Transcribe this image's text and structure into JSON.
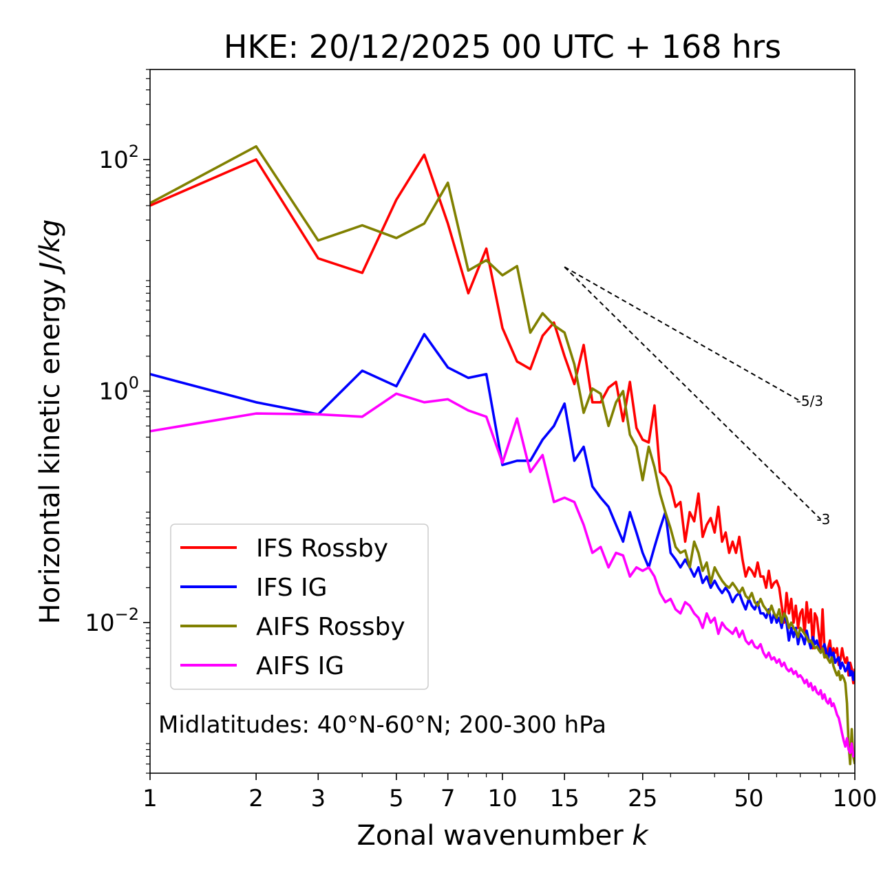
{
  "chart_data": {
    "type": "line",
    "title": "HKE: 20/12/2025 00 UTC + 168 hrs",
    "xlabel": "Zonal wavenumber ",
    "xlabel_italic": "k",
    "ylabel": "Horizontal kinetic energy ",
    "ylabel_italic": "J/kg",
    "xscale": "log",
    "yscale": "log",
    "xlim": [
      1,
      100
    ],
    "ylim": [
      0.0005,
      600
    ],
    "x_ticks": [
      1,
      2,
      3,
      5,
      7,
      10,
      15,
      25,
      50,
      100
    ],
    "x_tick_labels": [
      "1",
      "2",
      "3",
      "5",
      "7",
      "10",
      "15",
      "25",
      "50",
      "100"
    ],
    "y_ticks": [
      {
        "value": 100,
        "base": "10",
        "exp": "2"
      },
      {
        "value": 1,
        "base": "10",
        "exp": "0"
      },
      {
        "value": 0.01,
        "base": "10",
        "exp": "−2"
      }
    ],
    "annotation": "Midlatitudes: 40°N-60°N; 200-300 hPa",
    "legend_position": "lower-left",
    "reference_lines": [
      {
        "label": "-5/3",
        "x": [
          15,
          70
        ],
        "y": [
          11.8,
          0.82
        ]
      },
      {
        "label": "-3",
        "x": [
          15,
          80
        ],
        "y": [
          11.8,
          0.078
        ]
      }
    ],
    "series": [
      {
        "name": "IFS Rossby",
        "color": "#ff0000",
        "x": [
          1,
          2,
          3,
          4,
          5,
          6,
          7,
          8,
          9,
          10,
          11,
          12,
          13,
          14,
          15,
          16,
          17,
          18,
          19,
          20,
          21,
          22,
          23,
          24,
          25,
          26,
          27,
          28,
          29,
          30,
          31,
          32,
          33,
          34,
          35,
          36,
          37,
          38,
          39,
          40,
          41,
          42,
          43,
          44,
          45,
          46,
          47,
          48,
          49,
          50,
          51,
          52,
          53,
          54,
          55,
          56,
          57,
          58,
          59,
          60,
          61,
          62,
          63,
          64,
          65,
          66,
          67,
          68,
          69,
          70,
          71,
          72,
          73,
          74,
          75,
          76,
          77,
          78,
          79,
          80,
          81,
          82,
          83,
          84,
          85,
          86,
          87,
          88,
          89,
          90,
          91,
          92,
          93,
          94,
          95,
          96,
          97,
          98,
          99,
          100
        ],
        "y": [
          40,
          100,
          14,
          10.5,
          45,
          110,
          28,
          7,
          17,
          3.5,
          1.8,
          1.55,
          3,
          3.9,
          2,
          1.15,
          2.5,
          0.8,
          0.8,
          1.07,
          1.2,
          0.55,
          1.2,
          0.48,
          0.38,
          0.36,
          0.75,
          0.2,
          0.18,
          0.15,
          0.1,
          0.11,
          0.05,
          0.09,
          0.075,
          0.13,
          0.055,
          0.07,
          0.08,
          0.06,
          0.1,
          0.05,
          0.06,
          0.04,
          0.05,
          0.04,
          0.055,
          0.035,
          0.025,
          0.03,
          0.028,
          0.025,
          0.033,
          0.025,
          0.025,
          0.02,
          0.028,
          0.02,
          0.022,
          0.023,
          0.02,
          0.014,
          0.01,
          0.018,
          0.012,
          0.016,
          0.01,
          0.014,
          0.009,
          0.012,
          0.013,
          0.008,
          0.015,
          0.01,
          0.013,
          0.006,
          0.012,
          0.011,
          0.008,
          0.006,
          0.013,
          0.006,
          0.005,
          0.006,
          0.007,
          0.005,
          0.006,
          0.0055,
          0.006,
          0.0043,
          0.0048,
          0.006,
          0.005,
          0.0045,
          0.005,
          0.0035,
          0.0045,
          0.004,
          0.003,
          0.004
        ]
      },
      {
        "name": "IFS IG",
        "color": "#0000ff",
        "x": [
          1,
          2,
          3,
          4,
          5,
          6,
          7,
          8,
          9,
          10,
          11,
          12,
          13,
          14,
          15,
          16,
          17,
          18,
          19,
          20,
          21,
          22,
          23,
          24,
          25,
          26,
          27,
          28,
          29,
          30,
          31,
          32,
          33,
          34,
          35,
          36,
          37,
          38,
          39,
          40,
          41,
          42,
          43,
          44,
          45,
          46,
          47,
          48,
          49,
          50,
          51,
          52,
          53,
          54,
          55,
          56,
          57,
          58,
          59,
          60,
          61,
          62,
          63,
          64,
          65,
          66,
          67,
          68,
          69,
          70,
          71,
          72,
          73,
          74,
          75,
          76,
          77,
          78,
          79,
          80,
          81,
          82,
          83,
          84,
          85,
          86,
          87,
          88,
          89,
          90,
          91,
          92,
          93,
          94,
          95,
          96,
          97,
          98,
          99,
          100
        ],
        "y": [
          1.4,
          0.8,
          0.63,
          1.5,
          1.1,
          3.1,
          1.6,
          1.3,
          1.4,
          0.23,
          0.25,
          0.25,
          0.38,
          0.5,
          0.78,
          0.25,
          0.33,
          0.15,
          0.12,
          0.1,
          0.07,
          0.05,
          0.09,
          0.06,
          0.04,
          0.03,
          0.045,
          0.065,
          0.09,
          0.04,
          0.035,
          0.03,
          0.035,
          0.03,
          0.025,
          0.03,
          0.022,
          0.025,
          0.02,
          0.023,
          0.02,
          0.018,
          0.02,
          0.018,
          0.015,
          0.017,
          0.018,
          0.015,
          0.013,
          0.016,
          0.014,
          0.013,
          0.015,
          0.012,
          0.012,
          0.011,
          0.013,
          0.01,
          0.012,
          0.01,
          0.011,
          0.009,
          0.012,
          0.01,
          0.007,
          0.009,
          0.0075,
          0.009,
          0.0065,
          0.008,
          0.0075,
          0.0065,
          0.0085,
          0.007,
          0.006,
          0.0075,
          0.0065,
          0.007,
          0.006,
          0.0055,
          0.006,
          0.0065,
          0.0055,
          0.0048,
          0.006,
          0.005,
          0.0055,
          0.0045,
          0.0048,
          0.005,
          0.004,
          0.0045,
          0.0042,
          0.0038,
          0.004,
          0.0045,
          0.0035,
          0.0038,
          0.0032,
          0.0038
        ]
      },
      {
        "name": "AIFS Rossby",
        "color": "#808000",
        "x": [
          1,
          2,
          3,
          4,
          5,
          6,
          7,
          8,
          9,
          10,
          11,
          12,
          13,
          14,
          15,
          16,
          17,
          18,
          19,
          20,
          21,
          22,
          23,
          24,
          25,
          26,
          27,
          28,
          29,
          30,
          31,
          32,
          33,
          34,
          35,
          36,
          37,
          38,
          39,
          40,
          41,
          42,
          43,
          44,
          45,
          46,
          47,
          48,
          49,
          50,
          51,
          52,
          53,
          54,
          55,
          56,
          57,
          58,
          59,
          60,
          61,
          62,
          63,
          64,
          65,
          66,
          67,
          68,
          69,
          70,
          71,
          72,
          73,
          74,
          75,
          76,
          77,
          78,
          79,
          80,
          81,
          82,
          83,
          84,
          85,
          86,
          87,
          88,
          89,
          90,
          91,
          92,
          93,
          94,
          95,
          96,
          97,
          98,
          99,
          100
        ],
        "y": [
          42,
          130,
          20,
          27,
          21,
          28,
          63,
          11,
          13.5,
          10,
          12,
          3.2,
          4.7,
          3.7,
          3.2,
          1.7,
          0.65,
          1.05,
          0.95,
          0.5,
          0.8,
          1.0,
          0.42,
          0.33,
          0.17,
          0.33,
          0.22,
          0.13,
          0.09,
          0.065,
          0.045,
          0.04,
          0.042,
          0.03,
          0.05,
          0.04,
          0.028,
          0.033,
          0.022,
          0.03,
          0.026,
          0.023,
          0.021,
          0.02,
          0.022,
          0.02,
          0.018,
          0.02,
          0.017,
          0.016,
          0.018,
          0.015,
          0.014,
          0.016,
          0.014,
          0.013,
          0.012,
          0.014,
          0.012,
          0.011,
          0.013,
          0.01,
          0.012,
          0.011,
          0.009,
          0.01,
          0.009,
          0.0085,
          0.0075,
          0.009,
          0.0085,
          0.008,
          0.0075,
          0.0068,
          0.007,
          0.0065,
          0.006,
          0.0062,
          0.0058,
          0.0055,
          0.006,
          0.005,
          0.0052,
          0.0048,
          0.0045,
          0.005,
          0.0042,
          0.0038,
          0.0035,
          0.0038,
          0.0032,
          0.0035,
          0.0033,
          0.003,
          0.002,
          0.0009,
          0.0006,
          0.0012,
          0.0007,
          0.0006
        ]
      },
      {
        "name": "AIFS IG",
        "color": "#ff00ff",
        "x": [
          1,
          2,
          3,
          4,
          5,
          6,
          7,
          8,
          9,
          10,
          11,
          12,
          13,
          14,
          15,
          16,
          17,
          18,
          19,
          20,
          21,
          22,
          23,
          24,
          25,
          26,
          27,
          28,
          29,
          30,
          31,
          32,
          33,
          34,
          35,
          36,
          37,
          38,
          39,
          40,
          41,
          42,
          43,
          44,
          45,
          46,
          47,
          48,
          49,
          50,
          51,
          52,
          53,
          54,
          55,
          56,
          57,
          58,
          59,
          60,
          61,
          62,
          63,
          64,
          65,
          66,
          67,
          68,
          69,
          70,
          71,
          72,
          73,
          74,
          75,
          76,
          77,
          78,
          79,
          80,
          81,
          82,
          83,
          84,
          85,
          86,
          87,
          88,
          89,
          90,
          91,
          92,
          93,
          94,
          95,
          96,
          97,
          98,
          99,
          100
        ],
        "y": [
          0.45,
          0.64,
          0.63,
          0.6,
          0.95,
          0.8,
          0.85,
          0.68,
          0.6,
          0.24,
          0.58,
          0.2,
          0.28,
          0.11,
          0.12,
          0.11,
          0.07,
          0.04,
          0.045,
          0.03,
          0.04,
          0.038,
          0.025,
          0.03,
          0.028,
          0.03,
          0.025,
          0.018,
          0.015,
          0.016,
          0.013,
          0.012,
          0.015,
          0.014,
          0.012,
          0.011,
          0.009,
          0.012,
          0.01,
          0.011,
          0.008,
          0.01,
          0.009,
          0.0085,
          0.008,
          0.009,
          0.0075,
          0.0085,
          0.007,
          0.0065,
          0.007,
          0.0062,
          0.006,
          0.0065,
          0.0055,
          0.005,
          0.0055,
          0.0048,
          0.005,
          0.0045,
          0.0048,
          0.0042,
          0.0045,
          0.004,
          0.0038,
          0.004,
          0.0036,
          0.0038,
          0.0034,
          0.0035,
          0.0033,
          0.003,
          0.0032,
          0.0028,
          0.003,
          0.0026,
          0.0028,
          0.0025,
          0.0024,
          0.0026,
          0.0022,
          0.0024,
          0.0021,
          0.002,
          0.0022,
          0.0019,
          0.002,
          0.0018,
          0.0016,
          0.0015,
          0.0013,
          0.0011,
          0.00095,
          0.00085,
          0.001,
          0.0008,
          0.00075,
          0.0009,
          0.0007,
          0.00075
        ]
      }
    ]
  }
}
